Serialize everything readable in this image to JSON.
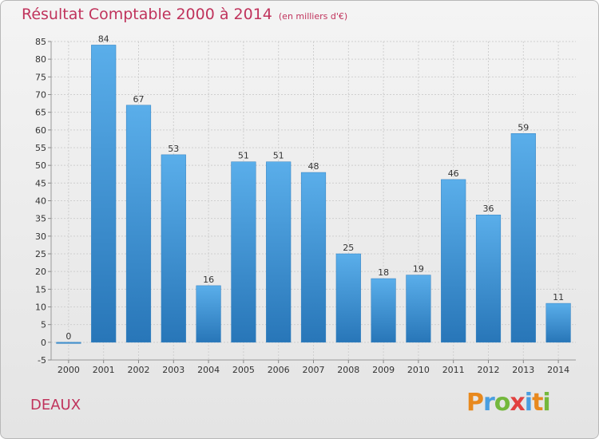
{
  "header": {
    "title": "Résultat Comptable 2000 à 2014",
    "subtitle": "(en milliers d'€)"
  },
  "footer": {
    "commune": "DEAUX",
    "logo_letters": [
      "P",
      "r",
      "o",
      "x",
      "i",
      "t",
      "i"
    ],
    "logo_colors": [
      "#e8891e",
      "#4a9ee0",
      "#74b83c",
      "#e2413f",
      "#4a9ee0",
      "#e8891e",
      "#74b83c"
    ]
  },
  "colors": {
    "bar_top": "#5aaeea",
    "bar_bottom": "#2876b8",
    "grid": "#cfcfcf"
  },
  "chart_data": {
    "type": "bar",
    "title": "Résultat Comptable 2000 à 2014",
    "subtitle": "(en milliers d'€)",
    "xlabel": "",
    "ylabel": "",
    "categories": [
      "2000",
      "2001",
      "2002",
      "2003",
      "2004",
      "2005",
      "2006",
      "2007",
      "2008",
      "2009",
      "2010",
      "2011",
      "2012",
      "2013",
      "2014"
    ],
    "values": [
      0,
      84,
      67,
      53,
      16,
      51,
      51,
      48,
      25,
      18,
      19,
      46,
      36,
      59,
      11
    ],
    "ylim": [
      -5,
      85
    ],
    "yticks": [
      -5,
      0,
      5,
      10,
      15,
      20,
      25,
      30,
      35,
      40,
      45,
      50,
      55,
      60,
      65,
      70,
      75,
      80,
      85
    ],
    "grid": true,
    "legend": "none"
  }
}
